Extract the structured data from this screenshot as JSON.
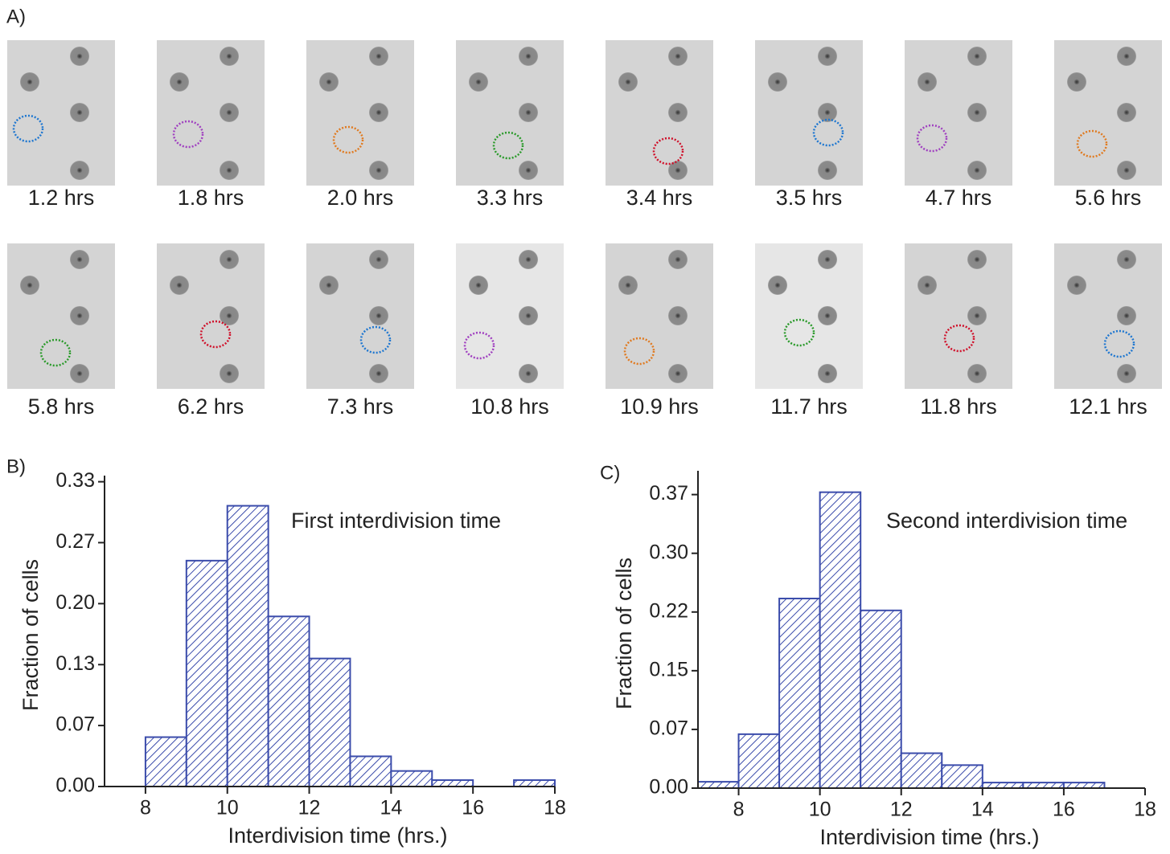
{
  "panel_labels": [
    "A)",
    "B)",
    "C)"
  ],
  "timelapse": {
    "times": [
      "1.2 hrs",
      "1.8 hrs",
      "2.0 hrs",
      "3.3 hrs",
      "3.4 hrs",
      "3.5 hrs",
      "4.7 hrs",
      "5.6 hrs",
      "5.8 hrs",
      "6.2 hrs",
      "7.3 hrs",
      "10.8 hrs",
      "10.9 hrs",
      "11.7 hrs",
      "11.8 hrs",
      "12.1 hrs"
    ]
  },
  "chart_data": [
    {
      "type": "histogram",
      "annotation": "First interdivision time",
      "xlabel": "Interdivision time (hrs.)",
      "ylabel": "Fraction of cells",
      "color": "#3b4cab",
      "bins": [
        8,
        9,
        10,
        11,
        12,
        13,
        14,
        15,
        16,
        17,
        18
      ],
      "values": [
        0.054,
        0.247,
        0.307,
        0.186,
        0.14,
        0.033,
        0.017,
        0.007,
        0,
        0.007
      ],
      "xlim": [
        7,
        18
      ],
      "xticks": [
        8,
        10,
        12,
        14,
        16,
        18
      ],
      "ylim": [
        0,
        0.34
      ],
      "yticks": [
        {
          "value": 0,
          "label": "0.00"
        },
        {
          "value": 0.0667,
          "label": "0.07"
        },
        {
          "value": 0.1333,
          "label": "0.13"
        },
        {
          "value": 0.2,
          "label": "0.20"
        },
        {
          "value": 0.2667,
          "label": "0.27"
        },
        {
          "value": 0.3333,
          "label": "0.33"
        }
      ]
    },
    {
      "type": "histogram",
      "annotation": "Second interdivision time",
      "xlabel": "Interdivision time (hrs.)",
      "ylabel": "Fraction of cells",
      "color": "#3b4cab",
      "bins": [
        7,
        8,
        9,
        10,
        11,
        12,
        13,
        14,
        15,
        16,
        17
      ],
      "values": [
        0.008,
        0.068,
        0.239,
        0.373,
        0.224,
        0.044,
        0.029,
        0.007,
        0.007,
        0.007
      ],
      "xlim": [
        7,
        18
      ],
      "xticks": [
        8,
        10,
        12,
        14,
        16,
        18
      ],
      "ylim": [
        0,
        0.4
      ],
      "yticks": [
        {
          "value": 0,
          "label": "0.00"
        },
        {
          "value": 0.074,
          "label": "0.07"
        },
        {
          "value": 0.148,
          "label": "0.15"
        },
        {
          "value": 0.222,
          "label": "0.22"
        },
        {
          "value": 0.296,
          "label": "0.30"
        },
        {
          "value": 0.37,
          "label": "0.37"
        }
      ]
    }
  ]
}
